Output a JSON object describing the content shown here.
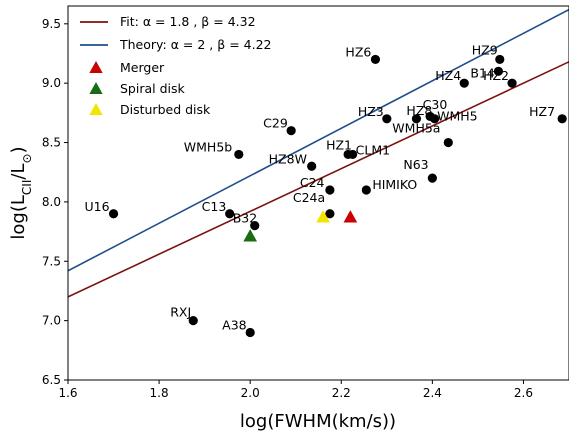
{
  "chart_data": {
    "type": "scatter",
    "xlabel": "log(FWHM(km/s))",
    "ylabel": "log(L_CII/L_⊙)",
    "xlim": [
      1.6,
      2.7
    ],
    "ylim": [
      6.5,
      9.65
    ],
    "xticks": [
      "1.6",
      "1.8",
      "2.0",
      "2.2",
      "2.4",
      "2.6"
    ],
    "yticks": [
      "6.5",
      "7.0",
      "7.5",
      "8.0",
      "8.5",
      "9.0",
      "9.5"
    ],
    "grid": false,
    "legend_position": "top-left",
    "lines": [
      {
        "label": "Fit: α = 1.8 , β = 4.32",
        "color": "#7b1111",
        "slope": 1.8,
        "intercept": 4.32
      },
      {
        "label": "Theory: α = 2 , β = 4.22",
        "color": "#1f4e8c",
        "slope": 2.0,
        "intercept": 4.22
      }
    ],
    "points": [
      {
        "label": "HZ6",
        "x": 2.275,
        "y": 9.2
      },
      {
        "label": "HZ9",
        "x": 2.548,
        "y": 9.2
      },
      {
        "label": "B14",
        "x": 2.545,
        "y": 9.1
      },
      {
        "label": "HZ4",
        "x": 2.47,
        "y": 9.0
      },
      {
        "label": "HZ2",
        "x": 2.575,
        "y": 9.0
      },
      {
        "label": "HZ7",
        "x": 2.685,
        "y": 8.7
      },
      {
        "label": "HZ3",
        "x": 2.3,
        "y": 8.7
      },
      {
        "label": "HZ8",
        "x": 2.365,
        "y": 8.7
      },
      {
        "label": "C30",
        "x": 2.405,
        "y": 8.7
      },
      {
        "label": "WMH5",
        "x": 2.395,
        "y": 8.72
      },
      {
        "label": "WMH5a",
        "x": 2.435,
        "y": 8.5
      },
      {
        "label": "C29",
        "x": 2.09,
        "y": 8.6
      },
      {
        "label": "WMH5b",
        "x": 1.975,
        "y": 8.4
      },
      {
        "label": "HZ1",
        "x": 2.215,
        "y": 8.4
      },
      {
        "label": "CLM1",
        "x": 2.225,
        "y": 8.4
      },
      {
        "label": "HZ8W",
        "x": 2.135,
        "y": 8.3
      },
      {
        "label": "N63",
        "x": 2.4,
        "y": 8.2
      },
      {
        "label": "C24",
        "x": 2.175,
        "y": 8.1
      },
      {
        "label": "HIMIKO",
        "x": 2.255,
        "y": 8.1
      },
      {
        "label": "C24a",
        "x": 2.175,
        "y": 7.9
      },
      {
        "label": "U16",
        "x": 1.7,
        "y": 7.9
      },
      {
        "label": "C13",
        "x": 1.955,
        "y": 7.9
      },
      {
        "label": "B32",
        "x": 2.01,
        "y": 7.8
      },
      {
        "label": "RXJ",
        "x": 1.875,
        "y": 7.0
      },
      {
        "label": "A38",
        "x": 2.0,
        "y": 6.9
      }
    ],
    "markers": [
      {
        "label": "Merger",
        "x": 2.22,
        "y": 7.87,
        "color": "#cc0000"
      },
      {
        "label": "Spiral disk",
        "x": 2.0,
        "y": 7.71,
        "color": "#1a6b12"
      },
      {
        "label": "Disturbed disk",
        "x": 2.16,
        "y": 7.87,
        "color": "#f2e600"
      }
    ]
  }
}
